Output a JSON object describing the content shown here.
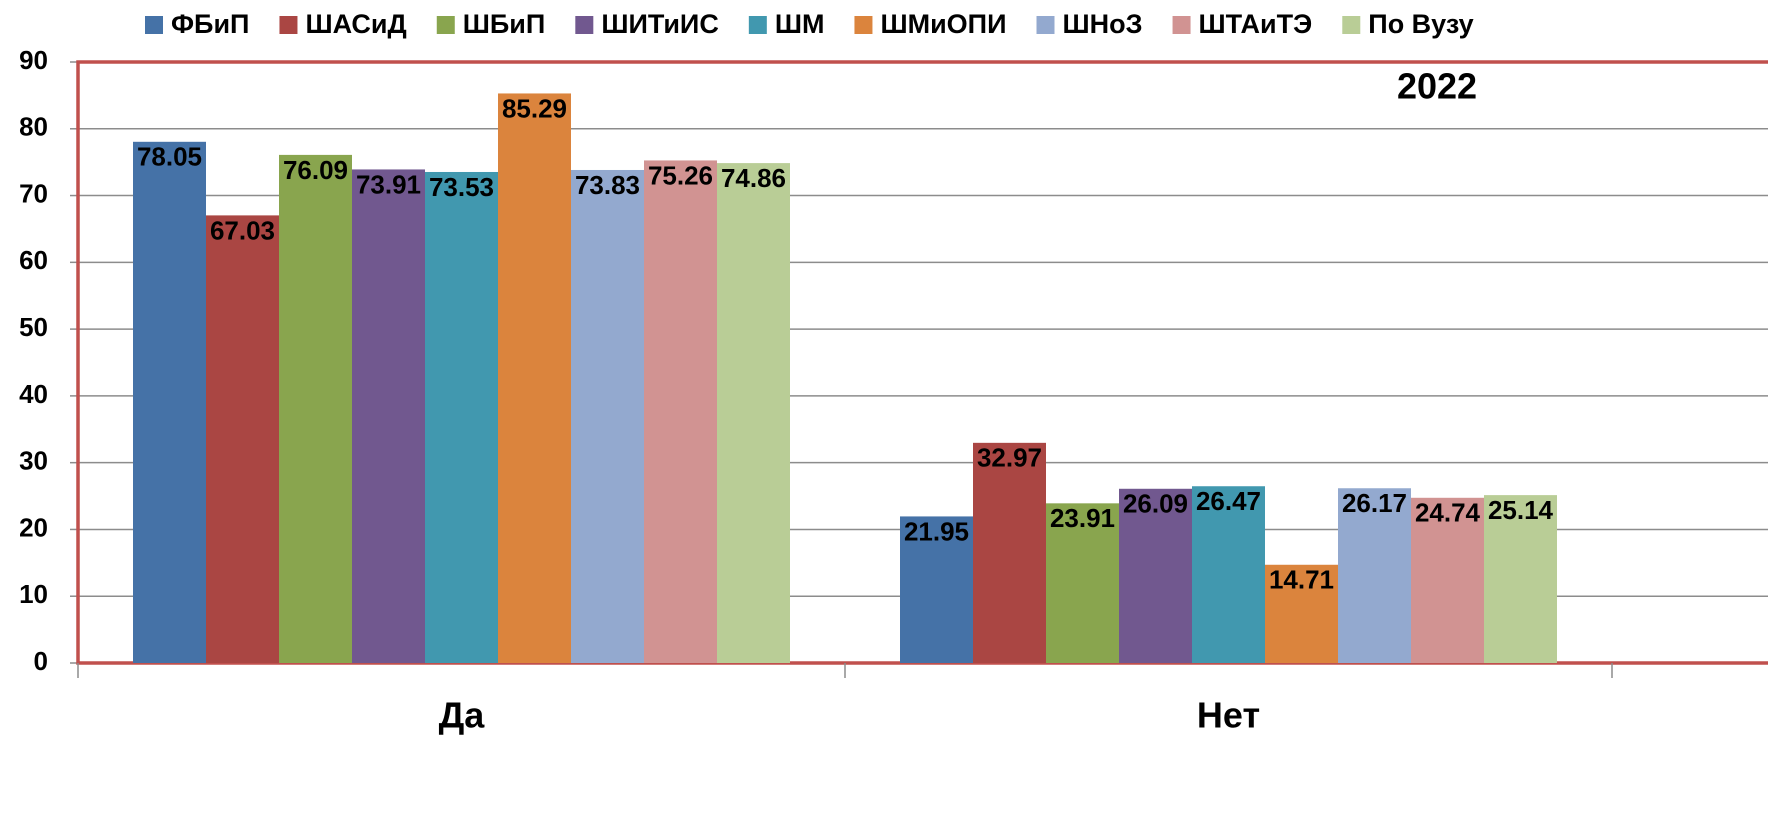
{
  "chart_data": {
    "type": "bar",
    "title": "2022",
    "categories": [
      "Да",
      "Нет"
    ],
    "series": [
      {
        "name": "ФБиП",
        "color": "#4572a7",
        "values": [
          78.05,
          21.95
        ]
      },
      {
        "name": "ШАСиД",
        "color": "#aa4643",
        "values": [
          67.03,
          32.97
        ]
      },
      {
        "name": "ШБиП",
        "color": "#89a54e",
        "values": [
          76.09,
          23.91
        ]
      },
      {
        "name": "ШИТиИС",
        "color": "#71588f",
        "values": [
          73.91,
          26.09
        ]
      },
      {
        "name": "ШМ",
        "color": "#4198af",
        "values": [
          73.53,
          26.47
        ]
      },
      {
        "name": "ШМиОПИ",
        "color": "#db843d",
        "values": [
          85.29,
          14.71
        ]
      },
      {
        "name": "ШНоЗ",
        "color": "#93a9cf",
        "values": [
          73.83,
          26.17
        ]
      },
      {
        "name": "ШТАиТЭ",
        "color": "#d19392",
        "values": [
          75.26,
          24.74
        ]
      },
      {
        "name": "По Вузу",
        "color": "#b9cd96",
        "values": [
          74.86,
          25.14
        ]
      }
    ],
    "ylim": [
      0,
      90
    ],
    "yticks": [
      0,
      10,
      20,
      30,
      40,
      50,
      60,
      70,
      80,
      90
    ],
    "grid": true,
    "legend": "top"
  }
}
